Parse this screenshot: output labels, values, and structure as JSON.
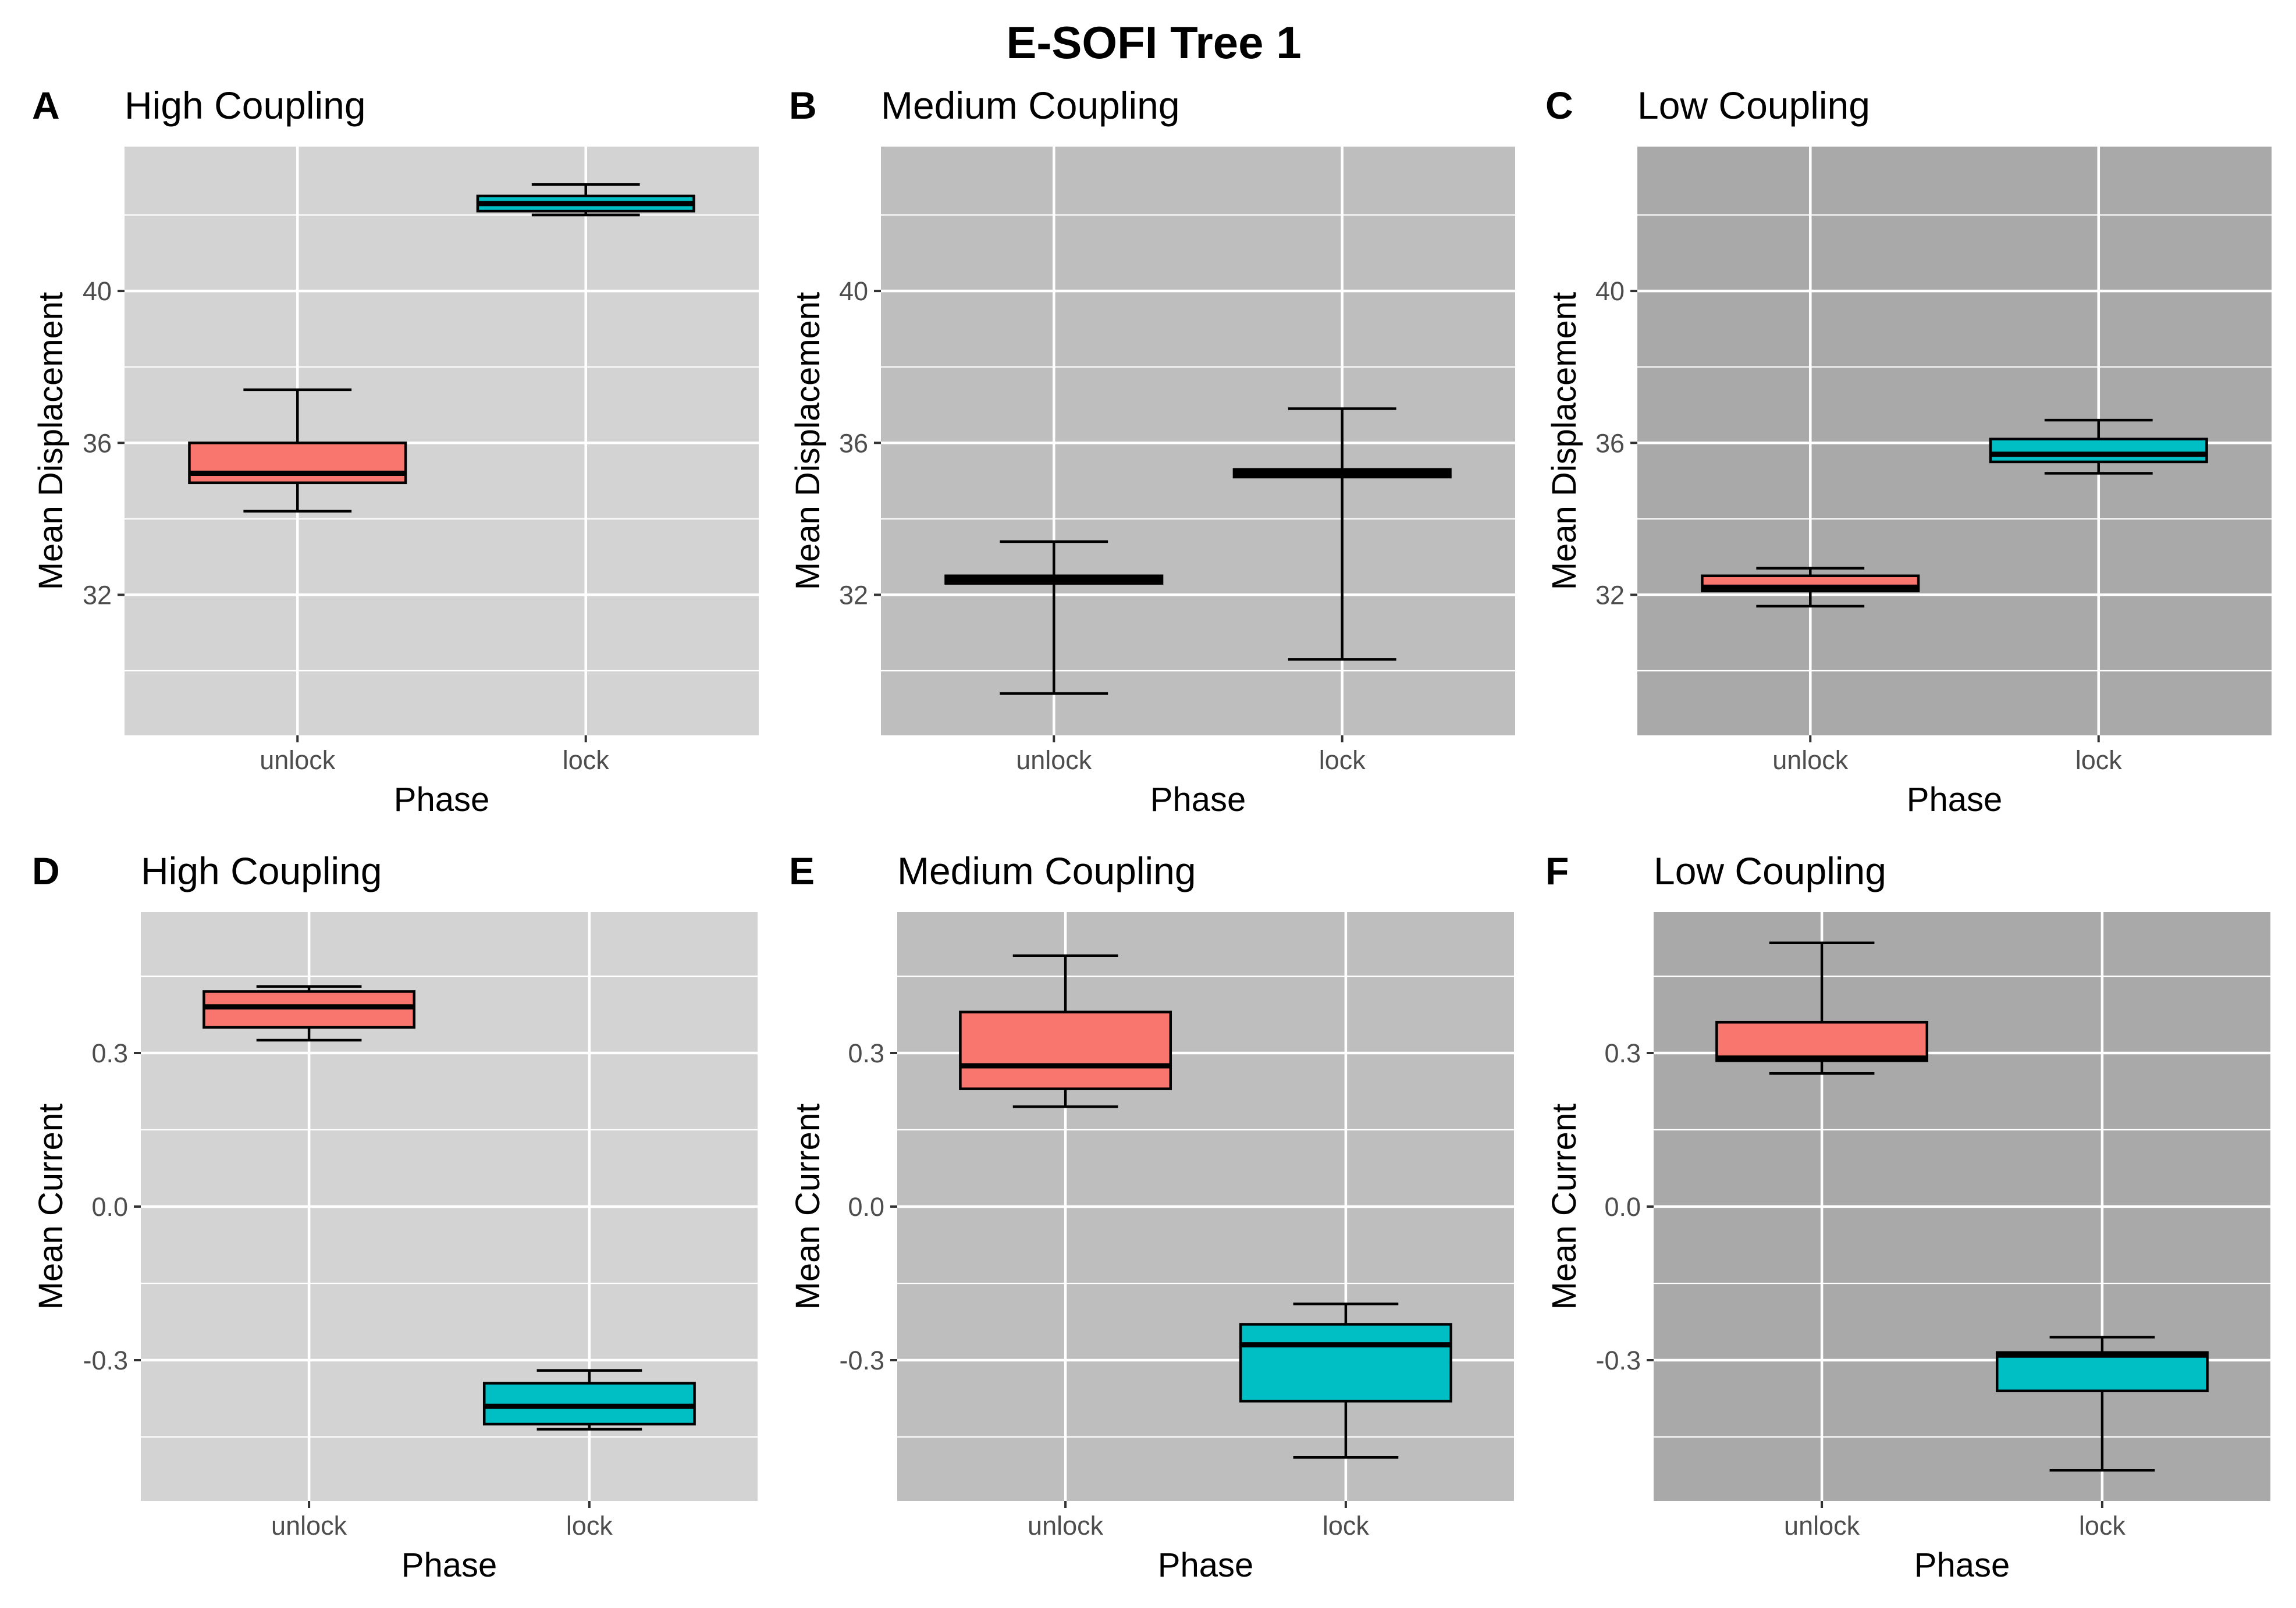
{
  "title": "E-SOFI Tree 1",
  "colors": {
    "unlock": "#F8766D",
    "lock": "#00BFC4",
    "bg_high": "#D3D3D3",
    "bg_medium": "#BEBEBE",
    "bg_low": "#A9A9A9",
    "grid": "#FFFFFF",
    "tick_text": "#4D4D4D"
  },
  "chart_data": [
    {
      "panel": "A",
      "type": "boxplot",
      "title": "High Coupling",
      "xlabel": "Phase",
      "ylabel": "Mean Displacement",
      "categories": [
        "unlock",
        "lock"
      ],
      "ylim": [
        28.3,
        43.8
      ],
      "yticks": [
        32,
        36,
        40
      ],
      "ytick_labels": [
        "32",
        "36",
        "40"
      ],
      "y_minor": [
        30,
        34,
        38,
        42
      ],
      "background": "high",
      "boxes": [
        {
          "category": "unlock",
          "min": 34.2,
          "q1": 34.95,
          "median": 35.2,
          "q3": 36.0,
          "max": 37.4
        },
        {
          "category": "lock",
          "min": 42.0,
          "q1": 42.1,
          "median": 42.3,
          "q3": 42.5,
          "max": 42.8
        }
      ]
    },
    {
      "panel": "B",
      "type": "boxplot",
      "title": "Medium Coupling",
      "xlabel": "Phase",
      "ylabel": "Mean Displacement",
      "categories": [
        "unlock",
        "lock"
      ],
      "ylim": [
        28.3,
        43.8
      ],
      "yticks": [
        32,
        36,
        40
      ],
      "ytick_labels": [
        "32",
        "36",
        "40"
      ],
      "y_minor": [
        30,
        34,
        38,
        42
      ],
      "background": "medium",
      "boxes": [
        {
          "category": "unlock",
          "min": 29.4,
          "q1": 32.3,
          "median": 32.4,
          "q3": 32.5,
          "max": 33.4
        },
        {
          "category": "lock",
          "min": 30.3,
          "q1": 35.1,
          "median": 35.2,
          "q3": 35.3,
          "max": 36.9
        }
      ]
    },
    {
      "panel": "C",
      "type": "boxplot",
      "title": "Low Coupling",
      "xlabel": "Phase",
      "ylabel": "Mean Displacement",
      "categories": [
        "unlock",
        "lock"
      ],
      "ylim": [
        28.3,
        43.8
      ],
      "yticks": [
        32,
        36,
        40
      ],
      "ytick_labels": [
        "32",
        "36",
        "40"
      ],
      "y_minor": [
        30,
        34,
        38,
        42
      ],
      "background": "low",
      "boxes": [
        {
          "category": "unlock",
          "min": 31.7,
          "q1": 32.1,
          "median": 32.2,
          "q3": 32.5,
          "max": 32.7
        },
        {
          "category": "lock",
          "min": 35.2,
          "q1": 35.5,
          "median": 35.7,
          "q3": 36.1,
          "max": 36.6
        }
      ]
    },
    {
      "panel": "D",
      "type": "boxplot",
      "title": "High Coupling",
      "xlabel": "Phase",
      "ylabel": "Mean Current",
      "categories": [
        "unlock",
        "lock"
      ],
      "ylim": [
        -0.575,
        0.575
      ],
      "yticks": [
        -0.3,
        0.0,
        0.3
      ],
      "ytick_labels": [
        "-0.3",
        "0.0",
        "0.3"
      ],
      "y_minor": [
        -0.45,
        -0.15,
        0.15,
        0.45
      ],
      "background": "high",
      "boxes": [
        {
          "category": "unlock",
          "min": 0.325,
          "q1": 0.35,
          "median": 0.39,
          "q3": 0.42,
          "max": 0.43
        },
        {
          "category": "lock",
          "min": -0.435,
          "q1": -0.425,
          "median": -0.39,
          "q3": -0.345,
          "max": -0.32
        }
      ]
    },
    {
      "panel": "E",
      "type": "boxplot",
      "title": "Medium Coupling",
      "xlabel": "Phase",
      "ylabel": "Mean Current",
      "categories": [
        "unlock",
        "lock"
      ],
      "ylim": [
        -0.575,
        0.575
      ],
      "yticks": [
        -0.3,
        0.0,
        0.3
      ],
      "ytick_labels": [
        "-0.3",
        "0.0",
        "0.3"
      ],
      "y_minor": [
        -0.45,
        -0.15,
        0.15,
        0.45
      ],
      "background": "medium",
      "boxes": [
        {
          "category": "unlock",
          "min": 0.195,
          "q1": 0.23,
          "median": 0.275,
          "q3": 0.38,
          "max": 0.49
        },
        {
          "category": "lock",
          "min": -0.49,
          "q1": -0.38,
          "median": -0.27,
          "q3": -0.23,
          "max": -0.19
        }
      ]
    },
    {
      "panel": "F",
      "type": "boxplot",
      "title": "Low Coupling",
      "xlabel": "Phase",
      "ylabel": "Mean Current",
      "categories": [
        "unlock",
        "lock"
      ],
      "ylim": [
        -0.575,
        0.575
      ],
      "yticks": [
        -0.3,
        0.0,
        0.3
      ],
      "ytick_labels": [
        "-0.3",
        "0.0",
        "0.3"
      ],
      "y_minor": [
        -0.45,
        -0.15,
        0.15,
        0.45
      ],
      "background": "low",
      "boxes": [
        {
          "category": "unlock",
          "min": 0.26,
          "q1": 0.285,
          "median": 0.29,
          "q3": 0.36,
          "max": 0.515
        },
        {
          "category": "lock",
          "min": -0.515,
          "q1": -0.36,
          "median": -0.29,
          "q3": -0.285,
          "max": -0.255
        }
      ]
    }
  ]
}
